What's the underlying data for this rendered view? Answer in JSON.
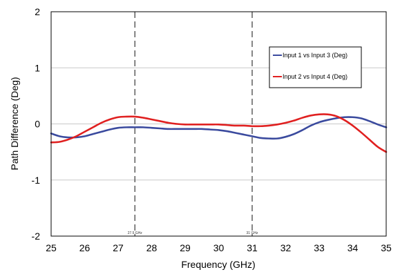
{
  "chart_data": {
    "type": "line",
    "title": "",
    "xlabel": "Frequency (GHz)",
    "ylabel": "Path Difference (Deg)",
    "xlim": [
      25,
      35
    ],
    "ylim": [
      -2,
      2
    ],
    "x_ticks": [
      "25",
      "26",
      "27",
      "28",
      "29",
      "30",
      "31",
      "32",
      "33",
      "34",
      "35"
    ],
    "y_ticks": [
      "2",
      "1",
      "0",
      "-1",
      "-2"
    ],
    "grid": "horizontal",
    "legend_position": "top-right",
    "markers": [
      {
        "x": 27.5,
        "label": "27.5 GHz"
      },
      {
        "x": 31,
        "label": "31 GHz"
      }
    ],
    "series": [
      {
        "name": "Input 1 vs Input 3 (Deg)",
        "color": "#3a4a9e",
        "x": [
          25,
          25.25,
          25.5,
          25.75,
          26,
          26.25,
          26.5,
          26.75,
          27,
          27.25,
          27.5,
          27.75,
          28,
          28.25,
          28.5,
          28.75,
          29,
          29.25,
          29.5,
          29.75,
          30,
          30.25,
          30.5,
          30.75,
          31,
          31.25,
          31.5,
          31.75,
          32,
          32.25,
          32.5,
          32.75,
          33,
          33.25,
          33.5,
          33.75,
          34,
          34.25,
          34.5,
          34.75,
          35
        ],
        "y": [
          -0.17,
          -0.22,
          -0.24,
          -0.24,
          -0.22,
          -0.18,
          -0.14,
          -0.1,
          -0.07,
          -0.06,
          -0.06,
          -0.06,
          -0.07,
          -0.08,
          -0.09,
          -0.09,
          -0.09,
          -0.09,
          -0.09,
          -0.1,
          -0.11,
          -0.13,
          -0.16,
          -0.19,
          -0.22,
          -0.25,
          -0.26,
          -0.26,
          -0.23,
          -0.18,
          -0.11,
          -0.03,
          0.03,
          0.07,
          0.1,
          0.12,
          0.12,
          0.1,
          0.05,
          -0.01,
          -0.06
        ]
      },
      {
        "name": "Input 2 vs Input 4 (Deg)",
        "color": "#e02020",
        "x": [
          25,
          25.25,
          25.5,
          25.75,
          26,
          26.25,
          26.5,
          26.75,
          27,
          27.25,
          27.5,
          27.75,
          28,
          28.25,
          28.5,
          28.75,
          29,
          29.25,
          29.5,
          29.75,
          30,
          30.25,
          30.5,
          30.75,
          31,
          31.25,
          31.5,
          31.75,
          32,
          32.25,
          32.5,
          32.75,
          33,
          33.25,
          33.5,
          33.75,
          34,
          34.25,
          34.5,
          34.75,
          35
        ],
        "y": [
          -0.33,
          -0.32,
          -0.28,
          -0.22,
          -0.14,
          -0.06,
          0.02,
          0.08,
          0.12,
          0.13,
          0.13,
          0.11,
          0.08,
          0.05,
          0.02,
          0.0,
          -0.01,
          -0.01,
          -0.01,
          -0.01,
          -0.01,
          -0.02,
          -0.03,
          -0.03,
          -0.04,
          -0.04,
          -0.03,
          -0.01,
          0.02,
          0.06,
          0.11,
          0.15,
          0.17,
          0.17,
          0.14,
          0.07,
          -0.03,
          -0.15,
          -0.28,
          -0.41,
          -0.5
        ]
      }
    ]
  }
}
